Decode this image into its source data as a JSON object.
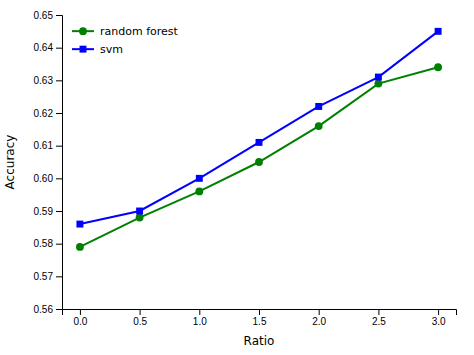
{
  "chart_data": {
    "type": "line",
    "xlabel": "Ratio",
    "ylabel": "Accuracy",
    "x": [
      0.0,
      0.5,
      1.0,
      1.5,
      2.0,
      2.5,
      3.0
    ],
    "series": [
      {
        "name": "random forest",
        "color": "#008000",
        "marker": "circle",
        "values": [
          0.579,
          0.588,
          0.596,
          0.605,
          0.616,
          0.629,
          0.634
        ]
      },
      {
        "name": "svm",
        "color": "#0000ff",
        "marker": "square",
        "values": [
          0.586,
          0.59,
          0.6,
          0.611,
          0.622,
          0.631,
          0.645
        ]
      }
    ],
    "xlim": [
      -0.15,
      3.15
    ],
    "xticks": [
      {
        "value": 0,
        "label": "0.0"
      },
      0.5,
      {
        "value": 1,
        "label": "1.0"
      },
      1.5,
      {
        "value": 2,
        "label": "2.0"
      },
      2.5,
      {
        "value": 3,
        "label": "3.0"
      }
    ],
    "ylim": [
      0.56,
      0.65
    ],
    "yticks": [
      0.56,
      0.57,
      0.58,
      0.59,
      {
        "value": 0.6,
        "label": "0.60"
      },
      0.61,
      0.62,
      0.63,
      0.64,
      0.65
    ],
    "legend": "upper left",
    "grid": false
  }
}
